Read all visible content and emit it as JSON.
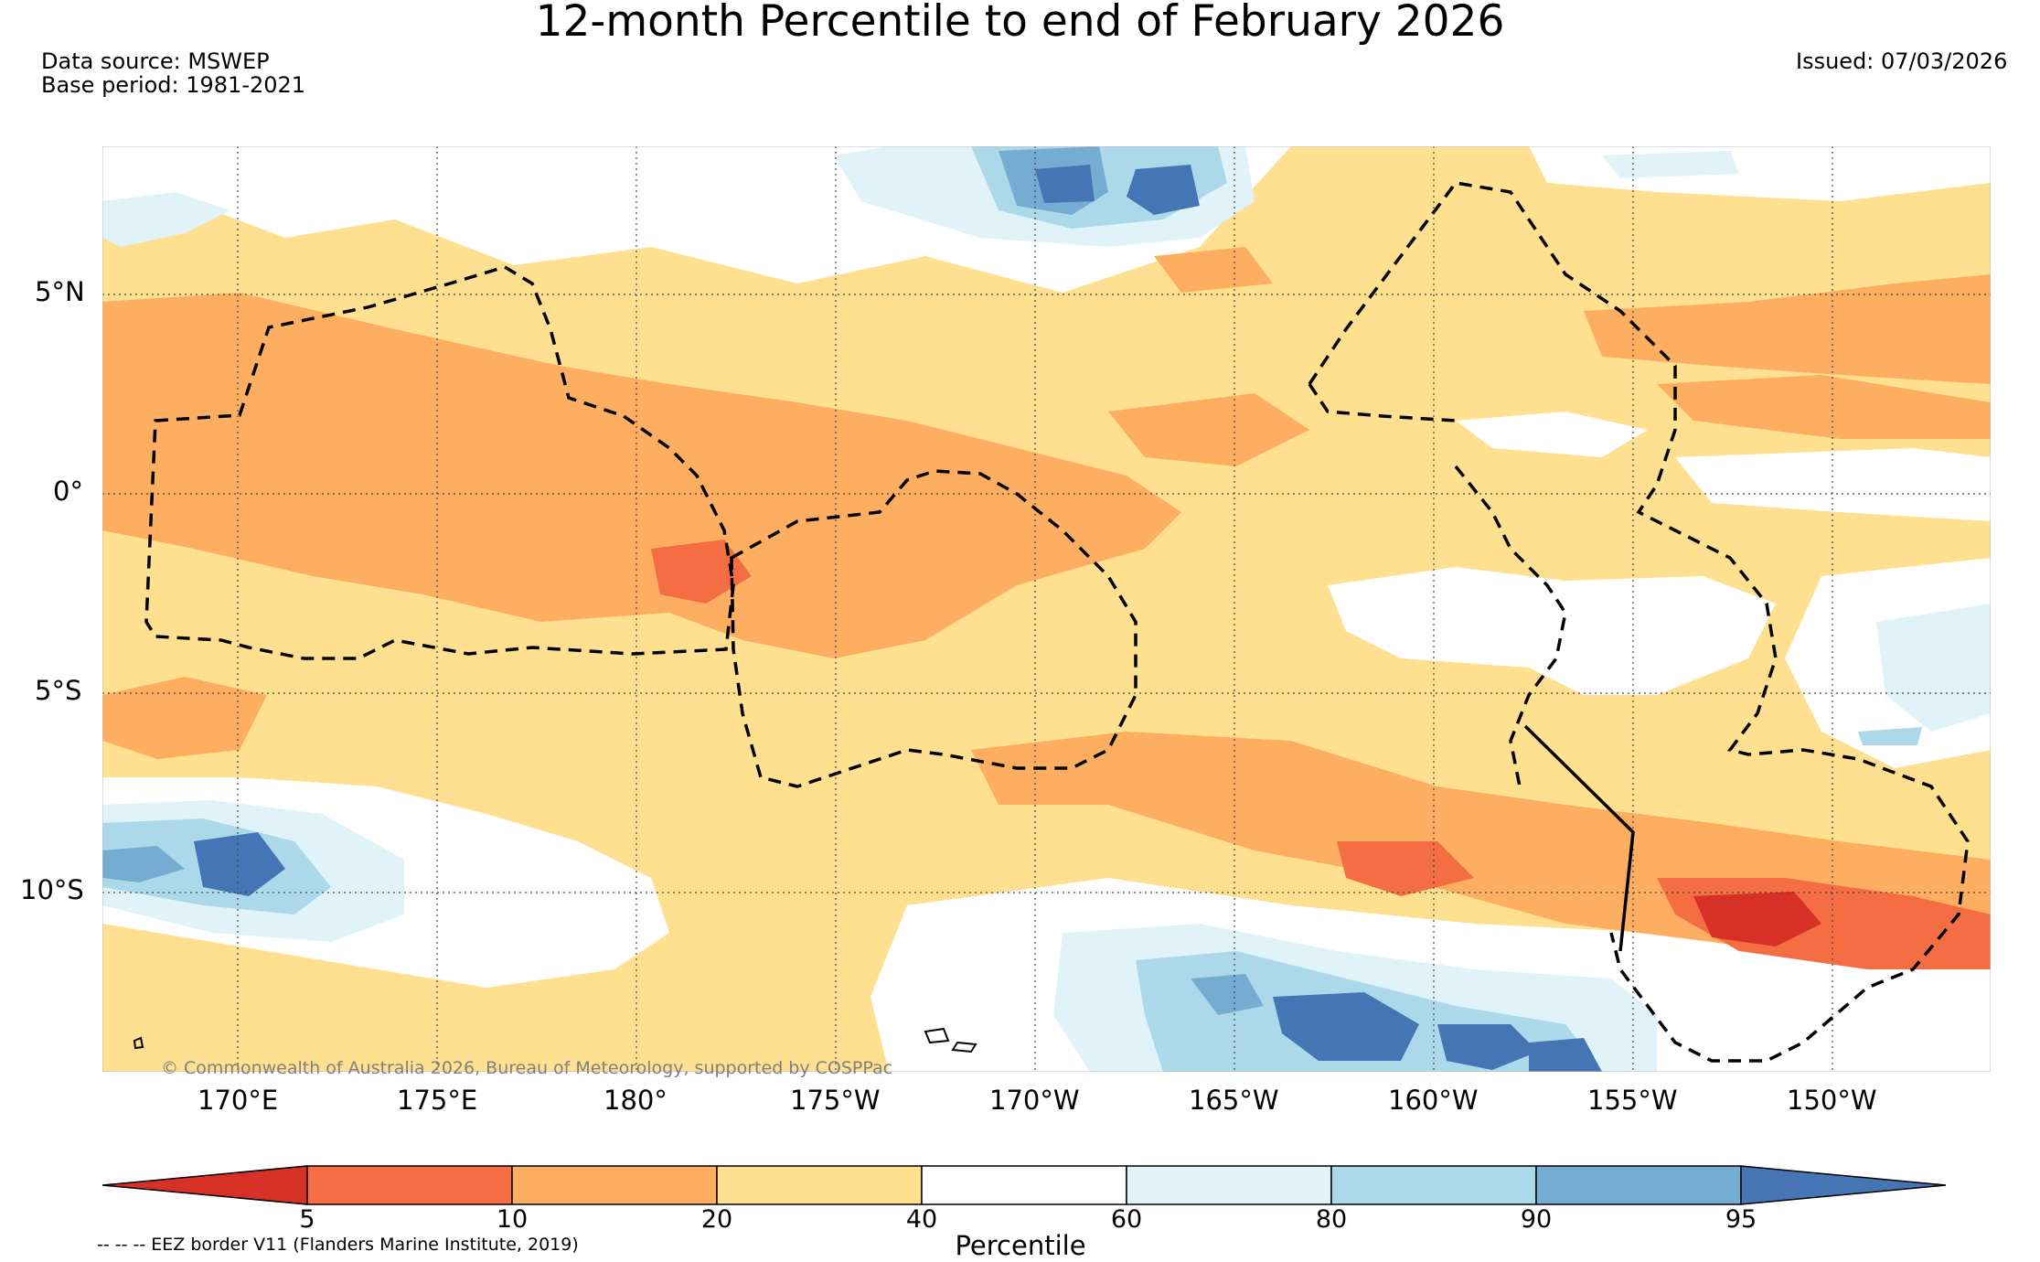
{
  "title": "12-month Percentile to end of February 2026",
  "data_source": "Data source: MSWEP",
  "base_period": "Base period: 1981-2021",
  "issued": "Issued: 07/03/2026",
  "copyright": "© Commonwealth of Australia 2026, Bureau of Meteorology, supported by COSPPac",
  "eez_note": "-- -- -- EEZ border V11 (Flanders Marine Institute, 2019)",
  "latitude_labels": [
    "5°N",
    "0°",
    "5°S",
    "10°S"
  ],
  "longitude_labels": [
    "170°E",
    "175°E",
    "180°",
    "175°W",
    "170°W",
    "165°W",
    "160°W",
    "155°W",
    "150°W"
  ],
  "colorbar": {
    "label": "Percentile",
    "ticks": [
      "5",
      "10",
      "20",
      "40",
      "60",
      "80",
      "90",
      "95"
    ],
    "colors": [
      "#d73027",
      "#f46d43",
      "#fdae61",
      "#fee090",
      "#ffffff",
      "#e0f3f8",
      "#abd9e9",
      "#74add1",
      "#4575b4"
    ]
  }
}
